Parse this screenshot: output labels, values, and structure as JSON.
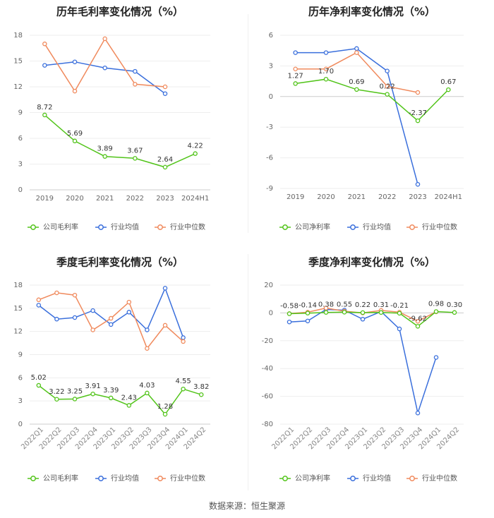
{
  "chart_data": [
    {
      "type": "line",
      "title": "历年毛利率变化情况（%）",
      "categories": [
        "2019",
        "2020",
        "2021",
        "2022",
        "2023",
        "2024H1"
      ],
      "ylim": [
        0,
        18
      ],
      "yticks": [
        "0",
        "3",
        "6",
        "9",
        "12",
        "15",
        "18"
      ],
      "grid": true,
      "legend_position": "bottom",
      "series": [
        {
          "name": "公司毛利率",
          "color": "#52c41a",
          "values": [
            8.72,
            5.69,
            3.89,
            3.67,
            2.64,
            4.22
          ],
          "labels": [
            "8.72",
            "5.69",
            "3.89",
            "3.67",
            "2.64",
            "4.22"
          ]
        },
        {
          "name": "行业均值",
          "color": "#3a6fdc",
          "values": [
            14.5,
            14.9,
            14.2,
            13.8,
            11.2,
            null
          ]
        },
        {
          "name": "行业中位数",
          "color": "#f08a5d",
          "values": [
            17.0,
            11.5,
            17.6,
            12.3,
            12.0,
            null
          ]
        }
      ]
    },
    {
      "type": "line",
      "title": "历年净利率变化情况（%）",
      "categories": [
        "2019",
        "2020",
        "2021",
        "2022",
        "2023",
        "2024H1"
      ],
      "ylim": [
        -9,
        6
      ],
      "yticks": [
        "-9",
        "-6",
        "-3",
        "0",
        "3",
        "6"
      ],
      "grid": true,
      "legend_position": "bottom",
      "series": [
        {
          "name": "公司净利率",
          "color": "#52c41a",
          "values": [
            1.27,
            1.7,
            0.69,
            0.22,
            -2.37,
            0.67
          ],
          "labels": [
            "1.27",
            "1.70",
            "0.69",
            "0.22",
            "-2.37",
            "0.67"
          ]
        },
        {
          "name": "行业均值",
          "color": "#3a6fdc",
          "values": [
            4.3,
            4.3,
            4.7,
            2.5,
            -8.6,
            null
          ]
        },
        {
          "name": "行业中位数",
          "color": "#f08a5d",
          "values": [
            2.7,
            2.7,
            4.3,
            1.0,
            0.4,
            null
          ]
        }
      ]
    },
    {
      "type": "line",
      "title": "季度毛利率变化情况（%）",
      "categories": [
        "2022Q1",
        "2022Q2",
        "2022Q3",
        "2022Q4",
        "2023Q1",
        "2023Q2",
        "2023Q3",
        "2023Q4",
        "2024Q1",
        "2024Q2"
      ],
      "ylim": [
        0,
        18
      ],
      "yticks": [
        "0",
        "3",
        "6",
        "9",
        "12",
        "15",
        "18"
      ],
      "grid": true,
      "legend_position": "bottom",
      "series": [
        {
          "name": "公司毛利率",
          "color": "#52c41a",
          "values": [
            5.02,
            3.22,
            3.25,
            3.91,
            3.39,
            2.43,
            4.03,
            1.28,
            4.55,
            3.82
          ],
          "labels": [
            "5.02",
            "3.22",
            "3.25",
            "3.91",
            "3.39",
            "2.43",
            "4.03",
            "1.28",
            "4.55",
            "3.82"
          ]
        },
        {
          "name": "行业均值",
          "color": "#3a6fdc",
          "values": [
            15.4,
            13.6,
            13.8,
            14.7,
            12.9,
            14.5,
            12.2,
            17.6,
            11.2,
            null
          ]
        },
        {
          "name": "行业中位数",
          "color": "#f08a5d",
          "values": [
            16.1,
            17.0,
            16.7,
            12.2,
            13.7,
            15.8,
            9.8,
            12.8,
            10.7,
            null
          ]
        }
      ]
    },
    {
      "type": "line",
      "title": "季度净利率变化情况（%）",
      "categories": [
        "2022Q1",
        "2022Q2",
        "2022Q3",
        "2022Q4",
        "2023Q1",
        "2023Q2",
        "2023Q3",
        "2023Q4",
        "2024Q1",
        "2024Q2"
      ],
      "ylim": [
        -80,
        20
      ],
      "yticks": [
        "-80",
        "-60",
        "-40",
        "-20",
        "0",
        "20"
      ],
      "grid": true,
      "legend_position": "bottom",
      "series": [
        {
          "name": "公司净利率",
          "color": "#52c41a",
          "values": [
            -0.58,
            -0.14,
            0.38,
            0.55,
            0.22,
            0.31,
            -0.21,
            -9.62,
            0.98,
            0.3
          ],
          "labels": [
            "-0.58",
            "-0.14",
            "0.38",
            "0.55",
            "0.22",
            "0.31",
            "-0.21",
            "-9.62",
            "0.98",
            "0.30"
          ]
        },
        {
          "name": "行业均值",
          "color": "#3a6fdc",
          "values": [
            -6.5,
            -5.8,
            2.5,
            2.0,
            -4.5,
            1.0,
            -11.5,
            -72.0,
            -32.0,
            null
          ]
        },
        {
          "name": "行业中位数",
          "color": "#f08a5d",
          "values": [
            -0.5,
            0.5,
            3.5,
            1.2,
            0.0,
            1.8,
            0.5,
            -6.0,
            0.8,
            null
          ]
        }
      ]
    }
  ],
  "footer": {
    "source": "数据来源：恒生聚源"
  }
}
